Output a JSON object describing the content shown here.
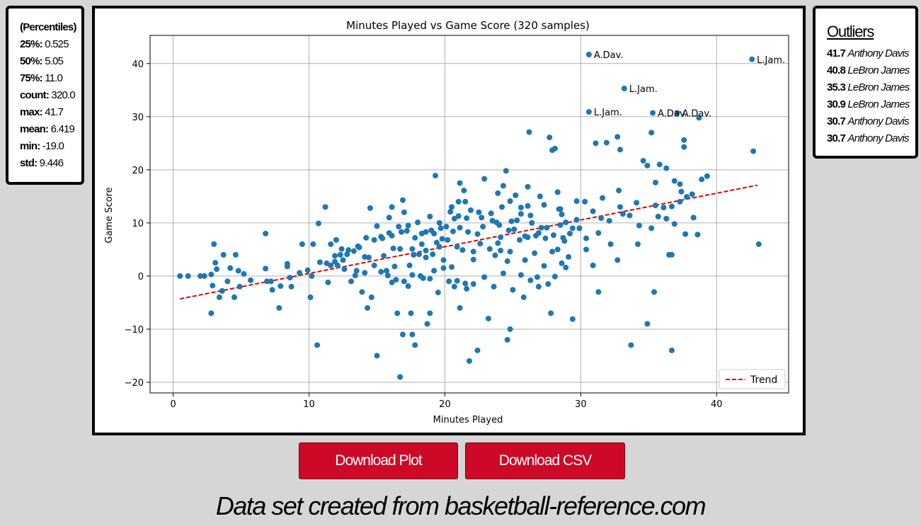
{
  "stats": {
    "header": "(Percentiles)",
    "rows": [
      {
        "key": "25%:",
        "value": "0.525"
      },
      {
        "key": "50%:",
        "value": "5.05"
      },
      {
        "key": "75%:",
        "value": "11.0"
      },
      {
        "key": "count:",
        "value": "320.0"
      },
      {
        "key": "max:",
        "value": "41.7"
      },
      {
        "key": "mean:",
        "value": "6.419"
      },
      {
        "key": "min:",
        "value": "-19.0"
      },
      {
        "key": "std:",
        "value": "9.446"
      }
    ]
  },
  "outliers": {
    "title": "Outliers",
    "rows": [
      {
        "value": "41.7",
        "name": "Anthony Davis"
      },
      {
        "value": "40.8",
        "name": "LeBron James"
      },
      {
        "value": "35.3",
        "name": "LeBron James"
      },
      {
        "value": "30.9",
        "name": "LeBron James"
      },
      {
        "value": "30.7",
        "name": "Anthony Davis"
      },
      {
        "value": "30.7",
        "name": "Anthony Davis"
      }
    ]
  },
  "buttons": {
    "download_plot": "Download Plot",
    "download_csv": "Download CSV"
  },
  "footer": "Data set created from basketball-reference.com",
  "colors": {
    "points": "#1f77b4",
    "trend": "#e00000",
    "button": "#cc0a27",
    "background": "#d6d6d6"
  },
  "chart_data": {
    "type": "scatter",
    "title": "Minutes Played vs Game Score (320 samples)",
    "xlabel": "Minutes Played",
    "ylabel": "Game Score",
    "xlim": [
      -1.7,
      45.3
    ],
    "ylim": [
      -22,
      45.3
    ],
    "xticks": [
      0,
      10,
      20,
      30,
      40
    ],
    "yticks": [
      -20,
      -10,
      0,
      10,
      20,
      30,
      40
    ],
    "grid": true,
    "legend": {
      "position": "bottom-right",
      "entries": [
        "Trend"
      ]
    },
    "trend": {
      "x": [
        0.5,
        43.0
      ],
      "y": [
        -4.3,
        17.1
      ]
    },
    "annotations": [
      {
        "label": "A.Dav.",
        "x": 30.6,
        "y": 41.7
      },
      {
        "label": "L.Jam.",
        "x": 42.6,
        "y": 40.8
      },
      {
        "label": "L.Jam.",
        "x": 33.2,
        "y": 35.3
      },
      {
        "label": "L.Jam.",
        "x": 30.6,
        "y": 30.9
      },
      {
        "label": "A.Dav.",
        "x": 35.3,
        "y": 30.7
      },
      {
        "label": "A.Dav.",
        "x": 37.1,
        "y": 30.7
      }
    ],
    "points": [
      [
        30.6,
        41.7
      ],
      [
        42.6,
        40.8
      ],
      [
        33.2,
        35.3
      ],
      [
        30.6,
        30.9
      ],
      [
        35.3,
        30.7
      ],
      [
        37.1,
        30.7
      ],
      [
        38.7,
        29.8
      ],
      [
        26.2,
        27.1
      ],
      [
        27.7,
        26.1
      ],
      [
        35.2,
        27.0
      ],
      [
        31.9,
        25.1
      ],
      [
        32.7,
        26.2
      ],
      [
        28.1,
        24.0
      ],
      [
        27.9,
        23.7
      ],
      [
        31.1,
        25.0
      ],
      [
        32.9,
        23.8
      ],
      [
        34.6,
        21.7
      ],
      [
        37.6,
        25.6
      ],
      [
        37.6,
        24.3
      ],
      [
        42.7,
        23.5
      ],
      [
        24.5,
        19.8
      ],
      [
        19.3,
        18.9
      ],
      [
        22.9,
        18.3
      ],
      [
        21.1,
        17.5
      ],
      [
        24.3,
        17.0
      ],
      [
        26.1,
        16.8
      ],
      [
        21.4,
        16.1
      ],
      [
        23.9,
        15.6
      ],
      [
        25.2,
        15.2
      ],
      [
        27.0,
        15.0
      ],
      [
        28.3,
        15.8
      ],
      [
        29.7,
        14.1
      ],
      [
        30.3,
        14.0
      ],
      [
        31.6,
        14.7
      ],
      [
        32.8,
        16.1
      ],
      [
        33.1,
        11.7
      ],
      [
        34.9,
        20.8
      ],
      [
        35.5,
        17.6
      ],
      [
        35.8,
        21.0
      ],
      [
        36.3,
        20.3
      ],
      [
        36.9,
        17.9
      ],
      [
        37.3,
        17.3
      ],
      [
        37.4,
        15.9
      ],
      [
        38.9,
        18.2
      ],
      [
        39.3,
        18.8
      ],
      [
        16.9,
        14.3
      ],
      [
        16.1,
        13.0
      ],
      [
        17.0,
        12.0
      ],
      [
        15.9,
        11.0
      ],
      [
        15.0,
        9.4
      ],
      [
        14.5,
        12.8
      ],
      [
        11.2,
        13.0
      ],
      [
        10.7,
        9.9
      ],
      [
        20.5,
        13.0
      ],
      [
        21.0,
        14.0
      ],
      [
        21.5,
        14.0
      ],
      [
        21.9,
        12.4
      ],
      [
        22.7,
        11.0
      ],
      [
        23.4,
        11.8
      ],
      [
        24.2,
        13.0
      ],
      [
        24.8,
        14.1
      ],
      [
        25.6,
        12.9
      ],
      [
        26.3,
        11.4
      ],
      [
        28.4,
        12.6
      ],
      [
        28.6,
        11.6
      ],
      [
        25.3,
        10.5
      ],
      [
        26.4,
        10.0
      ],
      [
        27.1,
        9.1
      ],
      [
        28.5,
        9.6
      ],
      [
        29.4,
        9.0
      ],
      [
        30.4,
        7.1
      ],
      [
        31.3,
        8.1
      ],
      [
        31.5,
        10.9
      ],
      [
        34.3,
        9.5
      ],
      [
        35.2,
        9.0
      ],
      [
        35.7,
        11.2
      ],
      [
        36.3,
        10.8
      ],
      [
        36.9,
        9.8
      ],
      [
        37.7,
        7.9
      ],
      [
        38.3,
        11.0
      ],
      [
        38.6,
        7.8
      ],
      [
        34.2,
        6.0
      ],
      [
        30.4,
        5.0
      ],
      [
        32.2,
        6.0
      ],
      [
        32.7,
        3.0
      ],
      [
        36.5,
        4.0
      ],
      [
        36.7,
        4.0
      ],
      [
        43.1,
        6.0
      ],
      [
        30.9,
        2.0
      ],
      [
        31.3,
        -3.0
      ],
      [
        33.7,
        -13.0
      ],
      [
        34.9,
        -9.0
      ],
      [
        35.4,
        -3.0
      ],
      [
        36.7,
        -14.0
      ],
      [
        29.4,
        -8.1
      ],
      [
        27.8,
        -7.0
      ],
      [
        26.9,
        -2.0
      ],
      [
        25.8,
        -4.0
      ],
      [
        24.8,
        -10.0
      ],
      [
        24.6,
        -12.0
      ],
      [
        23.6,
        -2.0
      ],
      [
        23.2,
        -8.0
      ],
      [
        22.4,
        -14.0
      ],
      [
        21.8,
        -16.0
      ],
      [
        21.1,
        -6.0
      ],
      [
        20.7,
        -2.0
      ],
      [
        20.3,
        -1.0
      ],
      [
        21.6,
        -2.4
      ],
      [
        19.9,
        3.0
      ],
      [
        19.2,
        8.0
      ],
      [
        18.6,
        4.8
      ],
      [
        18.3,
        6.0
      ],
      [
        17.7,
        4.0
      ],
      [
        17.4,
        2.0
      ],
      [
        17.0,
        -1.0
      ],
      [
        16.5,
        -7.0
      ],
      [
        16.7,
        -19.0
      ],
      [
        16.9,
        -11.0
      ],
      [
        17.6,
        -11.0
      ],
      [
        17.8,
        -13.0
      ],
      [
        17.5,
        -7.0
      ],
      [
        18.7,
        -9.0
      ],
      [
        18.9,
        -7.0
      ],
      [
        19.2,
        1.0
      ],
      [
        18.2,
        0.0
      ],
      [
        15.7,
        1.0
      ],
      [
        16.3,
        1.8
      ],
      [
        15.0,
        -15.0
      ],
      [
        14.6,
        -4.0
      ],
      [
        14.3,
        -6.0
      ],
      [
        14.8,
        2.0
      ],
      [
        13.9,
        -3.0
      ],
      [
        13.5,
        1.0
      ],
      [
        13.1,
        -1.0
      ],
      [
        12.5,
        3.0
      ],
      [
        12.1,
        2.0
      ],
      [
        11.6,
        2.0
      ],
      [
        11.4,
        -1.2
      ],
      [
        10.6,
        -13.0
      ],
      [
        10.1,
        -4.0
      ],
      [
        10.2,
        0.0
      ],
      [
        9.5,
        6.0
      ],
      [
        8.7,
        -2.0
      ],
      [
        8.4,
        1.8
      ],
      [
        7.8,
        -6.0
      ],
      [
        7.2,
        -1.0
      ],
      [
        6.9,
        -1.0
      ],
      [
        6.8,
        1.4
      ],
      [
        6.8,
        8.0
      ],
      [
        5.2,
        0.4
      ],
      [
        4.9,
        -2.0
      ],
      [
        4.8,
        1.0
      ],
      [
        4.6,
        4.0
      ],
      [
        4.5,
        -4.0
      ],
      [
        4.2,
        1.5
      ],
      [
        4.0,
        -1.0
      ],
      [
        3.7,
        4.0
      ],
      [
        3.4,
        -4.0
      ],
      [
        3.2,
        1.3
      ],
      [
        3.1,
        2.5
      ],
      [
        3.0,
        6.0
      ],
      [
        2.9,
        -1.8
      ],
      [
        2.8,
        0.3
      ],
      [
        2.8,
        -7.0
      ],
      [
        2.3,
        0.0
      ],
      [
        2.0,
        0.0
      ],
      [
        1.1,
        0.0
      ],
      [
        0.5,
        0.0
      ],
      [
        8.4,
        2.3
      ],
      [
        10.3,
        6.0
      ],
      [
        11.6,
        6.0
      ],
      [
        12.0,
        6.8
      ],
      [
        12.3,
        4.0
      ],
      [
        12.8,
        4.1
      ],
      [
        13.3,
        4.7
      ],
      [
        13.6,
        5.6
      ],
      [
        14.1,
        3.6
      ],
      [
        14.4,
        3.5
      ],
      [
        15.5,
        3.8
      ],
      [
        16.2,
        5.2
      ],
      [
        16.7,
        5.1
      ],
      [
        17.6,
        5.1
      ],
      [
        18.1,
        4.1
      ],
      [
        18.6,
        3.5
      ],
      [
        19.1,
        4.1
      ],
      [
        19.6,
        5.5
      ],
      [
        20.2,
        6.8
      ],
      [
        20.9,
        5.5
      ],
      [
        21.3,
        4.9
      ],
      [
        22.1,
        4.6
      ],
      [
        22.6,
        6.1
      ],
      [
        23.3,
        5.1
      ],
      [
        24.1,
        4.8
      ],
      [
        24.8,
        4.6
      ],
      [
        25.5,
        6.8
      ],
      [
        26.1,
        7.3
      ],
      [
        26.7,
        7.6
      ],
      [
        27.4,
        7.1
      ],
      [
        28.0,
        7.7
      ],
      [
        28.7,
        7.2
      ],
      [
        29.2,
        8.0
      ],
      [
        29.9,
        9.0
      ],
      [
        24.1,
        7.3
      ],
      [
        23.9,
        6.2
      ],
      [
        22.4,
        7.9
      ],
      [
        21.7,
        8.3
      ],
      [
        20.6,
        8.4
      ],
      [
        19.8,
        7.0
      ],
      [
        19.4,
        6.3
      ],
      [
        18.3,
        8.0
      ],
      [
        17.8,
        7.2
      ],
      [
        17.2,
        8.5
      ],
      [
        16.8,
        8.3
      ],
      [
        16.1,
        7.6
      ],
      [
        15.4,
        7.1
      ],
      [
        14.8,
        6.8
      ],
      [
        14.2,
        7.2
      ],
      [
        13.7,
        5.4
      ],
      [
        12.9,
        4.9
      ],
      [
        12.4,
        5.1
      ],
      [
        11.9,
        3.8
      ],
      [
        11.3,
        2.4
      ],
      [
        10.8,
        2.6
      ],
      [
        9.9,
        1.1
      ],
      [
        9.3,
        0.6
      ],
      [
        8.6,
        -0.3
      ],
      [
        7.9,
        -1.9
      ],
      [
        7.3,
        -2.6
      ],
      [
        5.7,
        -0.8
      ],
      [
        3.6,
        -2.8
      ],
      [
        22.1,
        3.1
      ],
      [
        23.7,
        3.9
      ],
      [
        24.6,
        2.8
      ],
      [
        25.9,
        3.0
      ],
      [
        26.3,
        -0.8
      ],
      [
        27.6,
        -1.5
      ],
      [
        28.1,
        -0.1
      ],
      [
        28.9,
        1.6
      ],
      [
        20.5,
        1.7
      ],
      [
        19.9,
        1.5
      ],
      [
        18.4,
        -0.4
      ],
      [
        17.3,
        -1.9
      ],
      [
        16.1,
        -1.2
      ],
      [
        15.3,
        0.8
      ],
      [
        14.1,
        0.6
      ],
      [
        13.4,
        0.1
      ],
      [
        12.6,
        1.3
      ],
      [
        11.9,
        2.7
      ],
      [
        24.3,
        0.5
      ],
      [
        25.0,
        -2.6
      ],
      [
        25.6,
        0.2
      ],
      [
        26.8,
        -0.2
      ],
      [
        27.3,
        1.9
      ],
      [
        28.6,
        2.4
      ],
      [
        29.1,
        3.6
      ],
      [
        22.9,
        -0.2
      ],
      [
        22.1,
        -1.5
      ],
      [
        21.5,
        -1.4
      ],
      [
        20.9,
        -0.9
      ],
      [
        19.5,
        -3.1
      ],
      [
        18.9,
        -0.5
      ],
      [
        17.6,
        0.2
      ],
      [
        16.4,
        -0.7
      ],
      [
        15.8,
        0.1
      ],
      [
        26.6,
        4.3
      ],
      [
        27.9,
        4.6
      ],
      [
        28.3,
        5.0
      ],
      [
        28.8,
        6.6
      ],
      [
        25.1,
        8.8
      ],
      [
        26.9,
        8.1
      ],
      [
        27.5,
        9.1
      ],
      [
        22.8,
        9.3
      ],
      [
        23.5,
        10.4
      ],
      [
        24.0,
        9.6
      ],
      [
        24.7,
        8.6
      ],
      [
        25.9,
        7.5
      ],
      [
        21.1,
        9.1
      ],
      [
        20.7,
        10.8
      ],
      [
        20.1,
        9.3
      ],
      [
        19.7,
        9.0
      ],
      [
        19.0,
        8.6
      ],
      [
        18.6,
        8.3
      ],
      [
        28.5,
        12.6
      ],
      [
        28.9,
        10.1
      ],
      [
        29.7,
        10.6
      ],
      [
        30.9,
        12.2
      ],
      [
        32.1,
        10.4
      ],
      [
        32.9,
        13.0
      ],
      [
        33.6,
        11.4
      ],
      [
        34.1,
        13.8
      ],
      [
        35.5,
        13.3
      ],
      [
        36.1,
        12.9
      ],
      [
        36.7,
        13.1
      ],
      [
        37.3,
        14.0
      ],
      [
        37.8,
        14.9
      ],
      [
        38.2,
        15.4
      ],
      [
        27.3,
        13.4
      ],
      [
        26.1,
        13.2
      ],
      [
        25.6,
        11.7
      ],
      [
        24.9,
        10.3
      ],
      [
        23.8,
        10.1
      ],
      [
        22.5,
        12.0
      ],
      [
        21.6,
        10.9
      ],
      [
        21.0,
        11.3
      ],
      [
        20.4,
        12.1
      ],
      [
        19.6,
        10.0
      ],
      [
        18.9,
        11.2
      ],
      [
        18.0,
        10.1
      ],
      [
        17.3,
        9.5
      ],
      [
        16.6,
        9.3
      ],
      [
        15.9,
        8.1
      ],
      [
        15.3,
        7.4
      ]
    ]
  }
}
